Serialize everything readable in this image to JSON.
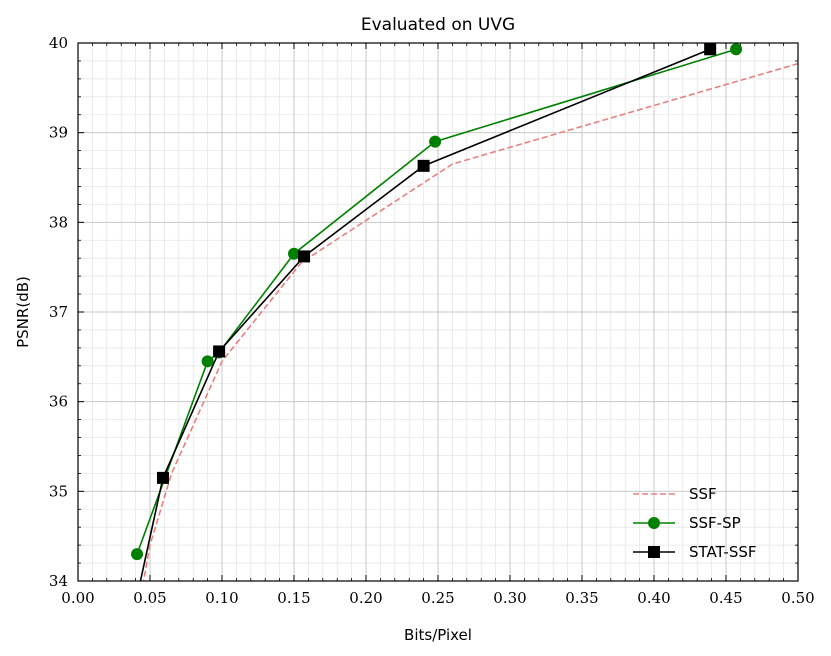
{
  "chart_data": {
    "type": "line",
    "title": "Evaluated on UVG",
    "xlabel": "Bits/Pixel",
    "ylabel": "PSNR(dB)",
    "xlim": [
      0.0,
      0.5
    ],
    "ylim": [
      34,
      40
    ],
    "x_ticks": [
      "0.00",
      "0.05",
      "0.10",
      "0.15",
      "0.20",
      "0.25",
      "0.30",
      "0.35",
      "0.40",
      "0.45",
      "0.50"
    ],
    "y_ticks": [
      "34",
      "35",
      "36",
      "37",
      "38",
      "39",
      "40"
    ],
    "grid": true,
    "minor_grid": true,
    "legend_position": "lower-right",
    "series": [
      {
        "name": "SSF",
        "color": "#e88080",
        "style": "dashed",
        "marker": "none",
        "x": [
          0.045,
          0.05,
          0.065,
          0.1,
          0.155,
          0.26,
          0.5
        ],
        "y": [
          33.95,
          34.4,
          35.2,
          36.45,
          37.55,
          38.65,
          39.77
        ]
      },
      {
        "name": "SSF-SP",
        "color": "#008000",
        "style": "solid",
        "marker": "circle",
        "x": [
          0.041,
          0.09,
          0.098,
          0.15,
          0.248,
          0.457
        ],
        "y": [
          34.3,
          36.45,
          36.55,
          37.65,
          38.9,
          39.93
        ]
      },
      {
        "name": "STAT-SSF",
        "color": "#000000",
        "style": "solid",
        "marker": "square",
        "x": [
          0.042,
          0.059,
          0.098,
          0.157,
          0.24,
          0.439
        ],
        "y": [
          33.9,
          35.15,
          36.56,
          37.62,
          38.63,
          39.93
        ]
      }
    ]
  }
}
